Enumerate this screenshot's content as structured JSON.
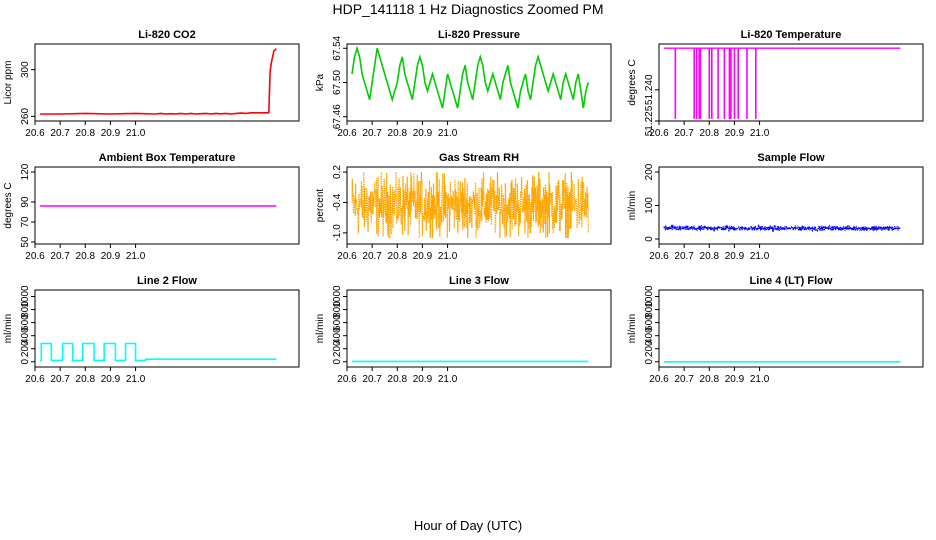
{
  "title": "HDP_141118  1 Hz Diagnostics Zoomed PM",
  "xlabel": "Hour of Day (UTC)",
  "chart_data": [
    {
      "type": "line",
      "title": "Li-820 CO2",
      "ylabel": "Licor ppm",
      "color": "#ff0000",
      "xlim": [
        20.6,
        21.65
      ],
      "ylim": [
        256,
        322
      ],
      "xticks": [
        20.6,
        20.7,
        20.8,
        20.9,
        21.0
      ],
      "xtick_labels": [
        "20.6",
        "20.7",
        "20.8",
        "20.9",
        "21.0"
      ],
      "yticks": [
        260,
        300
      ],
      "ytick_labels": [
        "260",
        "300"
      ],
      "series": [
        {
          "name": "CO2",
          "x": [
            20.62,
            20.7,
            20.8,
            20.9,
            21.0,
            21.08,
            21.1,
            21.12,
            21.14,
            21.16,
            21.18,
            21.2,
            21.22,
            21.24,
            21.26,
            21.28,
            21.3,
            21.32,
            21.34,
            21.36,
            21.38,
            21.4,
            21.42,
            21.44,
            21.46,
            21.48,
            21.5,
            21.53,
            21.535,
            21.54,
            21.55,
            21.56
          ],
          "y": [
            262,
            262,
            262.5,
            262,
            262.5,
            262,
            262.5,
            262,
            262.3,
            262,
            262.5,
            262,
            262.5,
            262,
            262.3,
            262.5,
            262,
            262.5,
            262.2,
            262.5,
            262,
            262.5,
            262.8,
            262.5,
            263,
            263,
            263,
            263,
            298,
            306,
            316,
            318
          ]
        }
      ]
    },
    {
      "type": "line",
      "title": "Li-820 Pressure",
      "ylabel": "kPa",
      "color": "#00cc00",
      "xlim": [
        20.6,
        21.65
      ],
      "ylim": [
        67.455,
        67.545
      ],
      "xticks": [
        20.6,
        20.7,
        20.8,
        20.9,
        21.0
      ],
      "xtick_labels": [
        "20.6",
        "20.7",
        "20.8",
        "20.9",
        "21.0"
      ],
      "yticks": [
        67.46,
        67.5,
        67.54
      ],
      "ytick_labels": [
        "67.46",
        "67.50",
        "67.54"
      ],
      "series": [
        {
          "name": "Pressure",
          "x": [
            20.62,
            20.63,
            20.64,
            20.65,
            20.66,
            20.67,
            20.68,
            20.69,
            20.7,
            20.71,
            20.72,
            20.73,
            20.74,
            20.75,
            20.76,
            20.77,
            20.78,
            20.79,
            20.8,
            20.81,
            20.82,
            20.83,
            20.84,
            20.85,
            20.86,
            20.87,
            20.88,
            20.89,
            20.9,
            20.91,
            20.92,
            20.93,
            20.94,
            20.95,
            20.96,
            20.97,
            20.98,
            20.99,
            21.0,
            21.01,
            21.02,
            21.03,
            21.04,
            21.05,
            21.06,
            21.07,
            21.08,
            21.09,
            21.1,
            21.11,
            21.12,
            21.13,
            21.14,
            21.15,
            21.16,
            21.17,
            21.18,
            21.19,
            21.2,
            21.21,
            21.22,
            21.23,
            21.24,
            21.25,
            21.26,
            21.27,
            21.28,
            21.29,
            21.3,
            21.31,
            21.32,
            21.33,
            21.34,
            21.35,
            21.36,
            21.37,
            21.38,
            21.39,
            21.4,
            21.41,
            21.42,
            21.43,
            21.44,
            21.45,
            21.46,
            21.47,
            21.48,
            21.49,
            21.5,
            21.51,
            21.52,
            21.53,
            21.54,
            21.55,
            21.56
          ],
          "y": [
            67.51,
            67.53,
            67.54,
            67.53,
            67.51,
            67.5,
            67.49,
            67.48,
            67.5,
            67.52,
            67.54,
            67.53,
            67.52,
            67.51,
            67.5,
            67.49,
            67.48,
            67.49,
            67.5,
            67.52,
            67.53,
            67.51,
            67.5,
            67.49,
            67.48,
            67.5,
            67.52,
            67.53,
            67.52,
            67.5,
            67.49,
            67.5,
            67.51,
            67.5,
            67.49,
            67.48,
            67.47,
            67.49,
            67.51,
            67.5,
            67.49,
            67.48,
            67.47,
            67.49,
            67.51,
            67.52,
            67.5,
            67.49,
            67.48,
            67.5,
            67.52,
            67.53,
            67.52,
            67.5,
            67.49,
            67.5,
            67.51,
            67.5,
            67.49,
            67.48,
            67.5,
            67.51,
            67.52,
            67.5,
            67.49,
            67.48,
            67.47,
            67.49,
            67.5,
            67.51,
            67.49,
            67.48,
            67.5,
            67.52,
            67.53,
            67.52,
            67.51,
            67.5,
            67.49,
            67.5,
            67.51,
            67.5,
            67.49,
            67.48,
            67.5,
            67.51,
            67.5,
            67.49,
            67.48,
            67.5,
            67.51,
            67.49,
            67.47,
            67.49,
            67.5
          ]
        }
      ]
    },
    {
      "type": "line",
      "title": "Li-820 Temperature",
      "ylabel": "degrees C",
      "color": "#ff00ff",
      "xlim": [
        20.6,
        21.65
      ],
      "ylim": [
        51.225,
        51.262
      ],
      "xticks": [
        20.6,
        20.7,
        20.8,
        20.9,
        21.0
      ],
      "xtick_labels": [
        "20.6",
        "20.7",
        "20.8",
        "20.9",
        "21.0"
      ],
      "yticks": [
        51.225,
        51.24
      ],
      "ytick_labels": [
        "51.225",
        "51.240"
      ],
      "baseline": 51.26,
      "drop_to": 51.226,
      "drops_x": [
        20.665,
        20.74,
        20.75,
        20.76,
        20.765,
        20.8,
        20.81,
        20.835,
        20.86,
        20.88,
        20.883,
        20.886,
        20.9,
        20.915,
        20.95,
        20.985
      ]
    },
    {
      "type": "line",
      "title": "Ambient Box Temperature",
      "ylabel": "degrees C",
      "color": "#ff00ff",
      "xlim": [
        20.6,
        21.65
      ],
      "ylim": [
        48,
        125
      ],
      "xticks": [
        20.6,
        20.7,
        20.8,
        20.9,
        21.0
      ],
      "xtick_labels": [
        "20.6",
        "20.7",
        "20.8",
        "20.9",
        "21.0"
      ],
      "yticks": [
        50,
        70,
        90,
        120
      ],
      "ytick_labels": [
        "50",
        "70",
        "90",
        "120"
      ],
      "series": [
        {
          "name": "Box Temp",
          "x": [
            20.62,
            21.56
          ],
          "y": [
            86,
            86
          ]
        }
      ]
    },
    {
      "type": "line",
      "title": "Gas Stream RH",
      "ylabel": "percent",
      "color": "#ffa500",
      "xlim": [
        20.6,
        21.65
      ],
      "ylim": [
        -1.22,
        0.3
      ],
      "xticks": [
        20.6,
        20.7,
        20.8,
        20.9,
        21.0
      ],
      "xtick_labels": [
        "20.6",
        "20.7",
        "20.8",
        "20.9",
        "21.0"
      ],
      "yticks": [
        -1.0,
        -0.4,
        0.2
      ],
      "ytick_labels": [
        "-1.0",
        "-0.4",
        "0.2"
      ],
      "noise": {
        "center": -0.45,
        "low": -1.1,
        "high": 0.2
      }
    },
    {
      "type": "line",
      "title": "Sample Flow",
      "ylabel": "ml/min",
      "color": "#0000ff",
      "xlim": [
        20.6,
        21.65
      ],
      "ylim": [
        -15,
        215
      ],
      "xticks": [
        20.6,
        20.7,
        20.8,
        20.9,
        21.0
      ],
      "xtick_labels": [
        "20.6",
        "20.7",
        "20.8",
        "20.9",
        "21.0"
      ],
      "yticks": [
        0,
        100,
        200
      ],
      "ytick_labels": [
        "0",
        "100",
        "200"
      ],
      "noise": {
        "center": 32,
        "low": 25,
        "high": 40
      }
    },
    {
      "type": "line",
      "title": "Line 2 Flow",
      "ylabel": "ml/min",
      "color": "#00ffff",
      "xlim": [
        20.6,
        21.65
      ],
      "ylim": [
        -80,
        1100
      ],
      "xticks": [
        20.6,
        20.7,
        20.8,
        20.9,
        21.0
      ],
      "xtick_labels": [
        "20.6",
        "20.7",
        "20.8",
        "20.9",
        "21.0"
      ],
      "yticks": [
        0,
        200,
        400,
        600,
        800,
        1000
      ],
      "ytick_labels": [
        "0",
        "200",
        "400",
        "600",
        "800",
        "1000"
      ],
      "series": [
        {
          "name": "Line 2",
          "x": [
            20.62,
            20.625,
            20.625,
            20.665,
            20.665,
            20.71,
            20.71,
            20.75,
            20.75,
            20.79,
            20.79,
            20.835,
            20.835,
            20.875,
            20.875,
            20.92,
            20.92,
            20.96,
            20.96,
            21.0,
            21.0,
            21.04,
            21.04,
            21.56
          ],
          "y": [
            20,
            20,
            280,
            280,
            20,
            20,
            280,
            280,
            20,
            20,
            280,
            280,
            20,
            20,
            280,
            280,
            20,
            20,
            280,
            280,
            20,
            20,
            40,
            40
          ]
        }
      ]
    },
    {
      "type": "line",
      "title": "Line 3 Flow",
      "ylabel": "ml/min",
      "color": "#00ffff",
      "xlim": [
        20.6,
        21.65
      ],
      "ylim": [
        -80,
        1100
      ],
      "xticks": [
        20.6,
        20.7,
        20.8,
        20.9,
        21.0
      ],
      "xtick_labels": [
        "20.6",
        "20.7",
        "20.8",
        "20.9",
        "21.0"
      ],
      "yticks": [
        0,
        200,
        400,
        600,
        800,
        1000
      ],
      "ytick_labels": [
        "0",
        "200",
        "400",
        "600",
        "800",
        "1000"
      ],
      "series": [
        {
          "name": "Line 3",
          "x": [
            20.62,
            20.7,
            20.8,
            20.9,
            21.0,
            21.56
          ],
          "y": [
            5,
            5,
            5,
            5,
            5,
            5
          ]
        }
      ]
    },
    {
      "type": "line",
      "title": "Line 4 (LT) Flow",
      "ylabel": "ml/min",
      "color": "#00ffff",
      "xlim": [
        20.6,
        21.65
      ],
      "ylim": [
        -80,
        1100
      ],
      "xticks": [
        20.6,
        20.7,
        20.8,
        20.9,
        21.0
      ],
      "xtick_labels": [
        "20.6",
        "20.7",
        "20.8",
        "20.9",
        "21.0"
      ],
      "yticks": [
        0,
        200,
        400,
        600,
        800,
        1000
      ],
      "ytick_labels": [
        "0",
        "200",
        "400",
        "600",
        "800",
        "1000"
      ],
      "series": [
        {
          "name": "Line 4",
          "x": [
            20.62,
            21.56
          ],
          "y": [
            0,
            0
          ]
        }
      ]
    }
  ]
}
